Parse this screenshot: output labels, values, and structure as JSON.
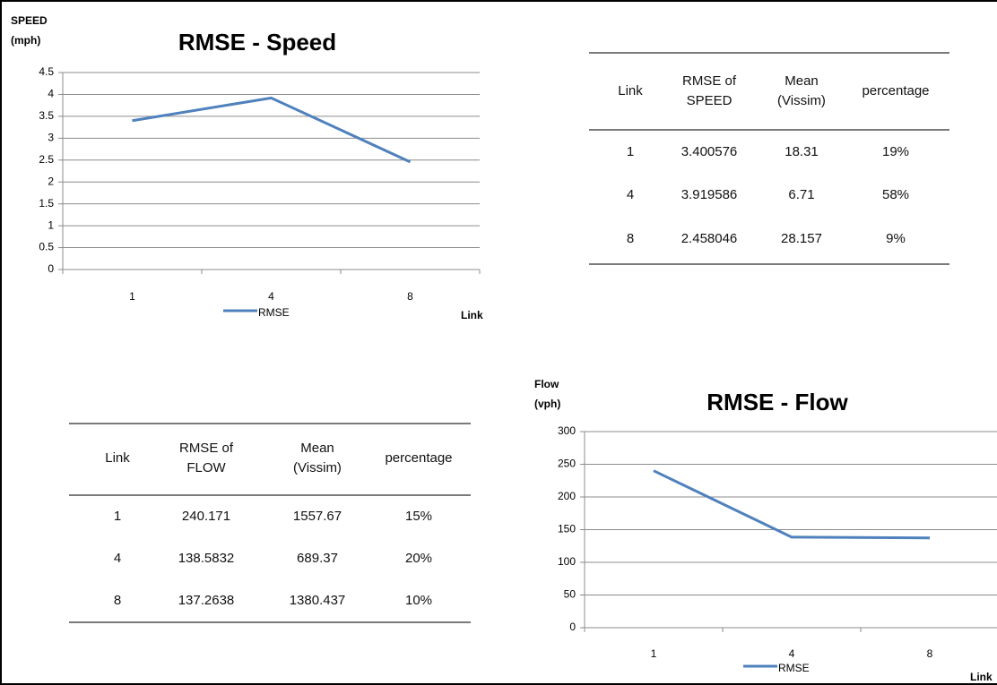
{
  "chart_data": [
    {
      "type": "line",
      "title": "RMSE - Speed",
      "y_label": "SPEED (mph)",
      "x_label": "Link",
      "categories": [
        "1",
        "4",
        "8"
      ],
      "series": [
        {
          "name": "RMSE",
          "color": "#4f81bd",
          "values": [
            3.400576,
            3.919586,
            2.458046
          ]
        }
      ],
      "ylim": [
        0,
        4.5
      ],
      "yticks": [
        0,
        0.5,
        1,
        1.5,
        2,
        2.5,
        3,
        3.5,
        4,
        4.5
      ],
      "grid": true,
      "legend": "bottom"
    },
    {
      "type": "line",
      "title": "RMSE - Flow",
      "y_label": "Flow (vph)",
      "x_label": "Link",
      "categories": [
        "1",
        "4",
        "8"
      ],
      "series": [
        {
          "name": "RMSE",
          "color": "#4f81bd",
          "values": [
            240.171,
            138.5832,
            137.2638
          ]
        }
      ],
      "ylim": [
        0,
        300
      ],
      "yticks": [
        0,
        50,
        100,
        150,
        200,
        250,
        300
      ],
      "grid": true,
      "legend": "bottom"
    }
  ],
  "tables": [
    {
      "header": [
        "Link",
        "RMSE of SPEED",
        "Mean (Vissim)",
        "percentage"
      ],
      "rows": [
        [
          1,
          3.400576,
          18.31,
          "19%"
        ],
        [
          4,
          3.919586,
          6.71,
          "58%"
        ],
        [
          8,
          2.458046,
          28.157,
          "9%"
        ]
      ]
    },
    {
      "header": [
        "Link",
        "RMSE of FLOW",
        "Mean (Vissim)",
        "percentage"
      ],
      "rows": [
        [
          1,
          240.171,
          1557.67,
          "15%"
        ],
        [
          4,
          138.5832,
          689.37,
          "20%"
        ],
        [
          8,
          137.2638,
          1380.437,
          "10%"
        ]
      ]
    }
  ]
}
